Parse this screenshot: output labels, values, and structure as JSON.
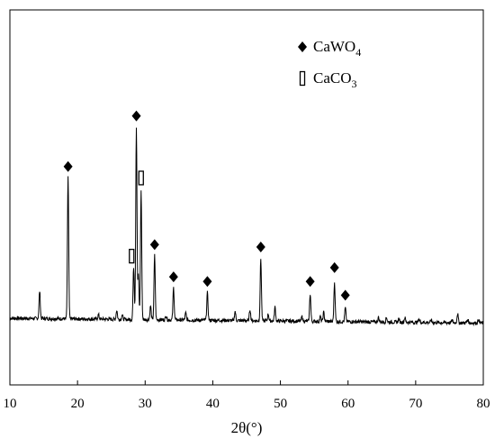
{
  "chart_data": {
    "type": "line",
    "title": "",
    "xlabel": "2θ(°)",
    "ylabel": "",
    "xlim": [
      10,
      80
    ],
    "ylim": [
      0,
      100
    ],
    "x_ticks": [
      10,
      20,
      30,
      40,
      50,
      60,
      70,
      80
    ],
    "y_ticks": [],
    "grid": false,
    "legend_position": "top-right",
    "legend": [
      {
        "marker": "filled-diamond",
        "label": "CaWO",
        "subscript": "4"
      },
      {
        "marker": "open-rectangle",
        "label": "CaCO",
        "subscript": "3"
      }
    ],
    "baseline": 28,
    "series": [
      {
        "name": "",
        "color": "#000000",
        "peaks": [
          {
            "x": 14.4,
            "y": 12
          },
          {
            "x": 18.6,
            "y": 62
          },
          {
            "x": 23.1,
            "y": 2
          },
          {
            "x": 25.8,
            "y": 4
          },
          {
            "x": 26.6,
            "y": 2
          },
          {
            "x": 28.3,
            "y": 23
          },
          {
            "x": 28.7,
            "y": 84
          },
          {
            "x": 29.0,
            "y": 19
          },
          {
            "x": 29.4,
            "y": 56
          },
          {
            "x": 30.8,
            "y": 6
          },
          {
            "x": 31.4,
            "y": 28
          },
          {
            "x": 33.1,
            "y": 2
          },
          {
            "x": 34.2,
            "y": 14
          },
          {
            "x": 36.0,
            "y": 3
          },
          {
            "x": 39.2,
            "y": 12
          },
          {
            "x": 43.3,
            "y": 4
          },
          {
            "x": 45.5,
            "y": 5
          },
          {
            "x": 47.1,
            "y": 27
          },
          {
            "x": 48.2,
            "y": 3
          },
          {
            "x": 49.2,
            "y": 6
          },
          {
            "x": 53.2,
            "y": 2
          },
          {
            "x": 54.4,
            "y": 12
          },
          {
            "x": 55.9,
            "y": 2
          },
          {
            "x": 56.4,
            "y": 4
          },
          {
            "x": 58.0,
            "y": 17
          },
          {
            "x": 59.6,
            "y": 6
          },
          {
            "x": 64.5,
            "y": 2
          },
          {
            "x": 65.7,
            "y": 2
          },
          {
            "x": 67.5,
            "y": 1.5
          },
          {
            "x": 68.4,
            "y": 2
          },
          {
            "x": 70.5,
            "y": 1.5
          },
          {
            "x": 72.3,
            "y": 1
          },
          {
            "x": 75.4,
            "y": 1
          },
          {
            "x": 76.2,
            "y": 4
          },
          {
            "x": 77.7,
            "y": 1.5
          },
          {
            "x": 79.3,
            "y": 1.5
          }
        ]
      }
    ],
    "annotations": [
      {
        "x": 18.6,
        "y": 94,
        "marker": "filled-diamond",
        "phase": "CaWO4"
      },
      {
        "x": 28.7,
        "y": 116,
        "marker": "filled-diamond",
        "phase": "CaWO4"
      },
      {
        "x": 29.4,
        "y": 89,
        "marker": "open-rectangle",
        "phase": "CaCO3"
      },
      {
        "x": 28.0,
        "y": 55,
        "marker": "open-rectangle",
        "phase": "CaCO3"
      },
      {
        "x": 31.4,
        "y": 60,
        "marker": "filled-diamond",
        "phase": "CaWO4"
      },
      {
        "x": 34.2,
        "y": 46,
        "marker": "filled-diamond",
        "phase": "CaWO4"
      },
      {
        "x": 39.2,
        "y": 44,
        "marker": "filled-diamond",
        "phase": "CaWO4"
      },
      {
        "x": 47.1,
        "y": 59,
        "marker": "filled-diamond",
        "phase": "CaWO4"
      },
      {
        "x": 54.4,
        "y": 44,
        "marker": "filled-diamond",
        "phase": "CaWO4"
      },
      {
        "x": 58.0,
        "y": 50,
        "marker": "filled-diamond",
        "phase": "CaWO4"
      },
      {
        "x": 59.6,
        "y": 38,
        "marker": "filled-diamond",
        "phase": "CaWO4"
      }
    ]
  }
}
